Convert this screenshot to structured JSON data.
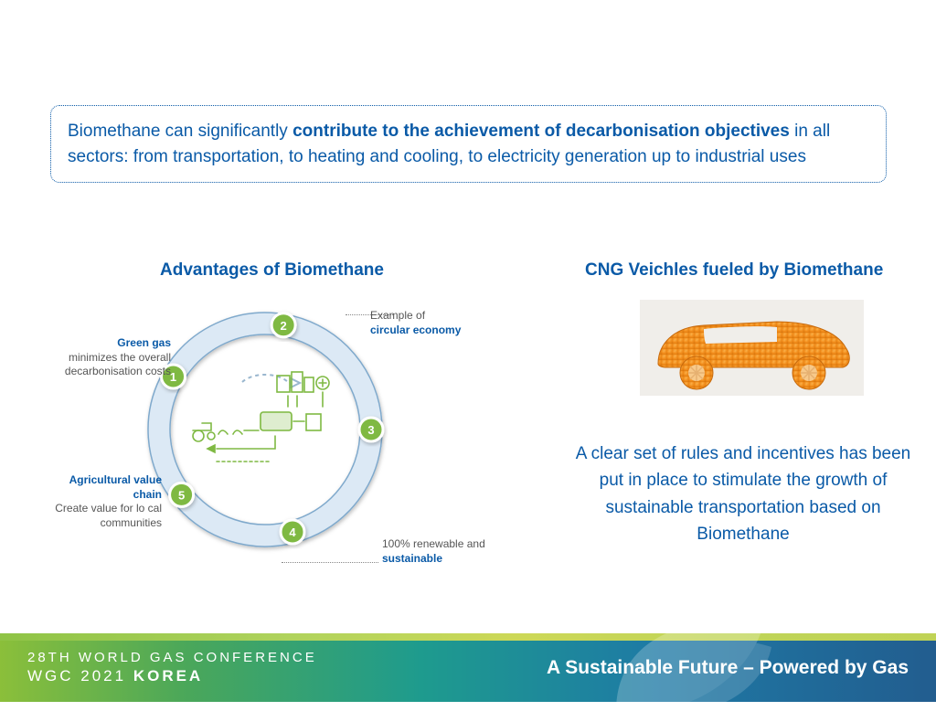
{
  "callout": {
    "t1": "Biomethane can significantly ",
    "bold": "contribute to the achievement of decarbonisation objectives",
    "t2": " in all sectors: from transportation, to heating and cooling, to electricity generation up to industrial uses"
  },
  "titles": {
    "left": "Advantages of Biomethane",
    "right": "CNG Veichles fueled by Biomethane"
  },
  "cycle": {
    "ring_fill": "#dce9f5",
    "ring_stroke": "#7fa9cc",
    "node_fill": "#7fb943",
    "node_text_color": "#ffffff",
    "nodes": [
      {
        "n": "1",
        "angle_deg": -60
      },
      {
        "n": "2",
        "angle_deg": 10
      },
      {
        "n": "3",
        "angle_deg": 90
      },
      {
        "n": "4",
        "angle_deg": 165
      },
      {
        "n": "5",
        "angle_deg": 232
      }
    ],
    "labels": {
      "n1_a": "Example of",
      "n1_b": "circular economy",
      "n3_a": "100% renewable and",
      "n3_b": "sustainable",
      "n4_b": "Agricultural value chain",
      "n4_a": "Create value for lo cal communities",
      "n5_b": "Green gas",
      "n5_a": "minimizes the overall decarbonisation costs"
    },
    "inner_icon_stroke": "#7fb943"
  },
  "right_text": "A clear set of rules and incentives has been put in place to stimulate the growth of sustainable transportation based on Biomethane",
  "car": {
    "body_color": "#f28c1a",
    "body_shade": "#d9770f",
    "bg": "#f0eeea"
  },
  "footer": {
    "line1": "28TH WORLD GAS CONFERENCE",
    "line2a": "WGC 2021",
    "line2b": " KOREA",
    "tagline": "A Sustainable Future – Powered by Gas",
    "gradient_stops": [
      "#8bbf3a",
      "#4aa75a",
      "#1e9b8e",
      "#1e7aa5",
      "#225d8f"
    ]
  }
}
